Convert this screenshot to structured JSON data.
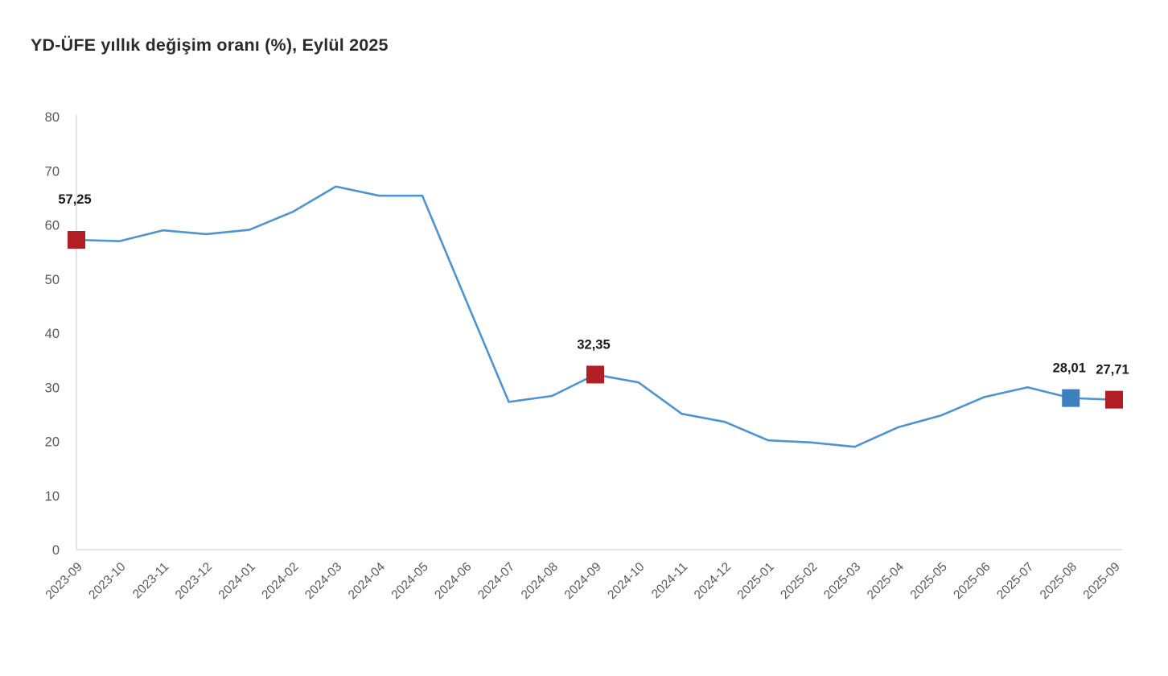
{
  "page": {
    "title": "YD-ÜFE yıllık değişim oranı (%), Eylül 2025"
  },
  "colors": {
    "background": "#FFFFFF",
    "line": "#4E94CE",
    "marker_red": "#B11F24",
    "marker_blue": "#3D7EBD",
    "axis_line": "#D6D6D6",
    "tick_text": "#595959",
    "title_text": "#2B2B2B",
    "data_label_text": "#1A1A1A"
  },
  "chart_data": {
    "type": "line",
    "title": "YD-ÜFE yıllık değişim oranı (%), Eylül 2025",
    "series_name": "YD-ÜFE yıllık değişim oranı (%)",
    "x": [
      "2023-09",
      "2023-10",
      "2023-11",
      "2023-12",
      "2024-01",
      "2024-02",
      "2024-03",
      "2024-04",
      "2024-05",
      "2024-06",
      "2024-07",
      "2024-08",
      "2024-09",
      "2024-10",
      "2024-11",
      "2024-12",
      "2025-01",
      "2025-02",
      "2025-03",
      "2025-04",
      "2025-05",
      "2025-06",
      "2025-07",
      "2025-08",
      "2025-09"
    ],
    "values": [
      57.25,
      57.0,
      59.0,
      58.3,
      59.1,
      62.4,
      67.1,
      65.4,
      65.4,
      46.3,
      27.3,
      28.4,
      32.35,
      30.9,
      25.1,
      23.6,
      20.2,
      19.8,
      19.0,
      22.6,
      24.8,
      28.2,
      30.0,
      28.01,
      27.71
    ],
    "ylim": [
      0,
      80
    ],
    "yticks": [
      0,
      10,
      20,
      30,
      40,
      50,
      60,
      70,
      80
    ],
    "xlabel": "",
    "ylabel": "",
    "grid": false,
    "legend": "none",
    "x_tick_rotation_deg": 45,
    "decimal_separator": ",",
    "highlighted_points": [
      {
        "x": "2023-09",
        "index": 0,
        "label": "57,25",
        "marker": "square",
        "marker_color": "#B11F24"
      },
      {
        "x": "2024-09",
        "index": 12,
        "label": "32,35",
        "marker": "square",
        "marker_color": "#B11F24"
      },
      {
        "x": "2025-08",
        "index": 23,
        "label": "28,01",
        "marker": "square",
        "marker_color": "#3D7EBD"
      },
      {
        "x": "2025-09",
        "index": 24,
        "label": "27,71",
        "marker": "square",
        "marker_color": "#B11F24"
      }
    ]
  }
}
